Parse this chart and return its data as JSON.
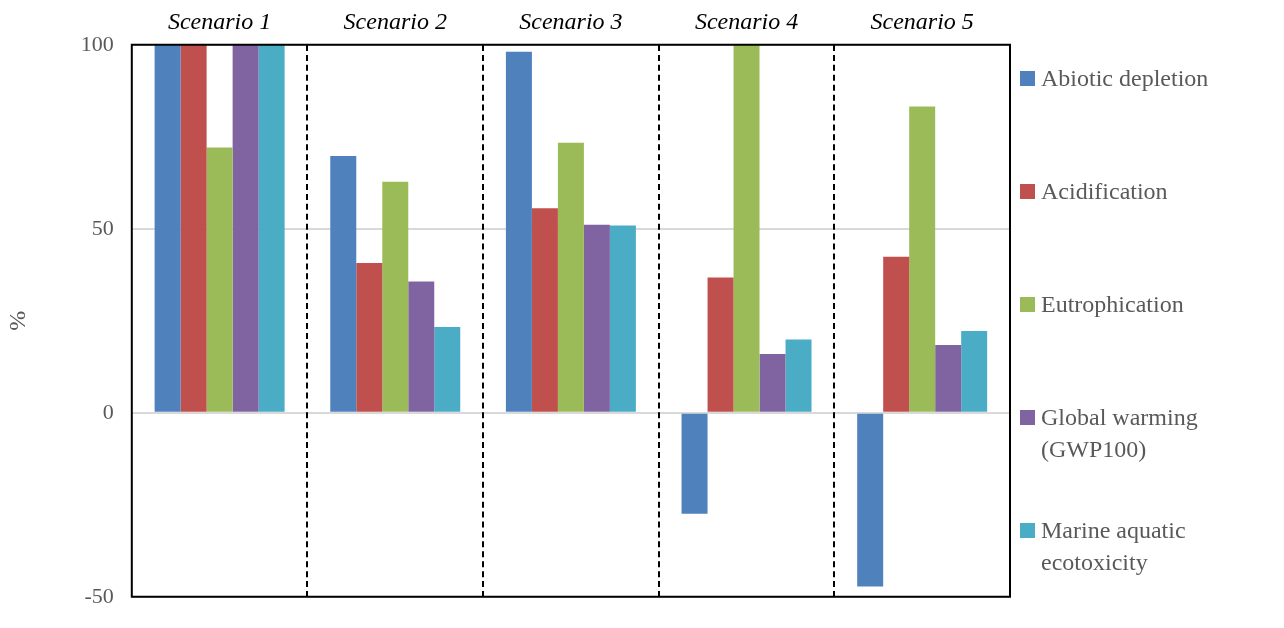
{
  "chart_data": {
    "type": "bar",
    "ylabel": "%",
    "categories": [
      "Scenario 1",
      "Scenario 2",
      "Scenario 3",
      "Scenario 4",
      "Scenario 5"
    ],
    "series": [
      {
        "name": "Abiotic depletion",
        "color": "#4f81bd",
        "values": [
          100,
          69.8,
          98.1,
          -27.4,
          -47.2
        ]
      },
      {
        "name": "Acidification",
        "color": "#c0504d",
        "values": [
          100,
          40.7,
          55.6,
          36.8,
          42.4
        ]
      },
      {
        "name": "Eutrophication",
        "color": "#9bbb59",
        "values": [
          72.1,
          62.8,
          73.4,
          100,
          83.2
        ]
      },
      {
        "name": "Global warming (GWP100)",
        "color": "#8064a2",
        "values": [
          100,
          35.7,
          51.1,
          16.0,
          18.4
        ]
      },
      {
        "name": "Marine aquatic ecotoxicity",
        "color": "#4bacc6",
        "values": [
          100,
          23.3,
          50.9,
          19.9,
          22.2
        ]
      }
    ],
    "ylim": [
      -50,
      100
    ],
    "yticks": [
      -50,
      0,
      50,
      100
    ],
    "grid": "y",
    "legend": "right"
  }
}
